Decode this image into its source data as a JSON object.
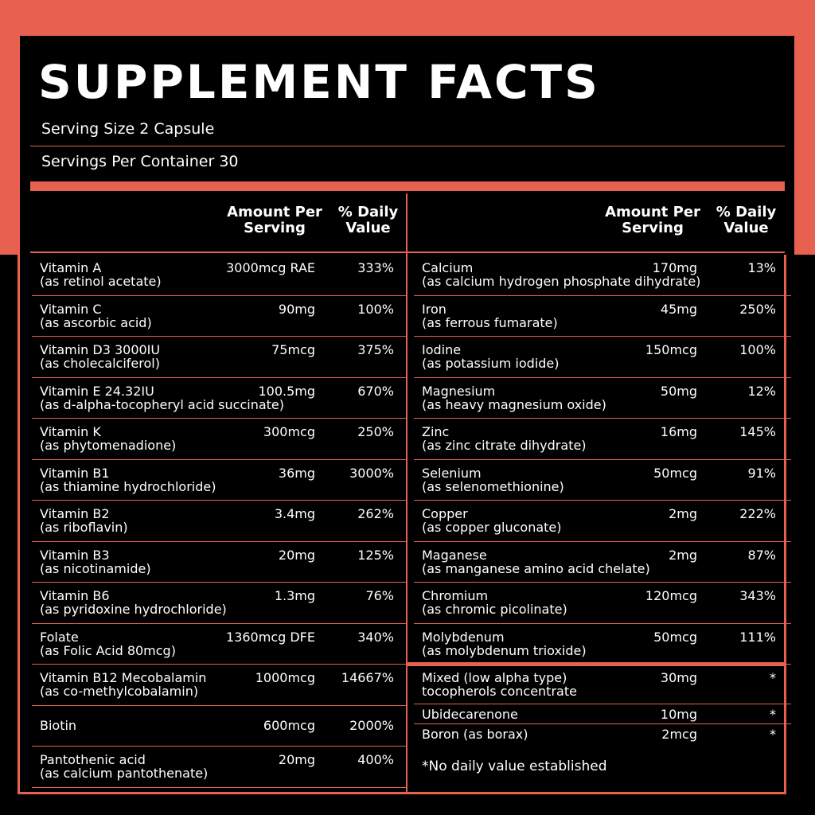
{
  "header": {
    "title": "SUPPLEMENT FACTS",
    "serving_size": "Serving Size 2 Capsule",
    "servings_per_container": "Servings Per Container 30"
  },
  "column_headers": {
    "left": {
      "amount": "Amount Per Serving",
      "daily_value": "% Daily Value"
    },
    "right": {
      "amount": "Amount Per Serving",
      "daily_value": "% Daily Value"
    }
  },
  "left_rows": [
    {
      "name": "Vitamin A",
      "source": "(as retinol acetate)",
      "amount": "3000mcg RAE",
      "daily_value": "333%"
    },
    {
      "name": "Vitamin C",
      "source": "(as ascorbic acid)",
      "amount": "90mg",
      "daily_value": "100%"
    },
    {
      "name": "Vitamin D3 3000IU",
      "source": "(as cholecalciferol)",
      "amount": "75mcg",
      "daily_value": "375%"
    },
    {
      "name": "Vitamin E 24.32IU",
      "source": "(as d-alpha-tocopheryl acid succinate)",
      "amount": "100.5mg",
      "daily_value": "670%"
    },
    {
      "name": "Vitamin K",
      "source": "(as phytomenadione)",
      "amount": "300mcg",
      "daily_value": "250%"
    },
    {
      "name": "Vitamin B1",
      "source": "(as thiamine hydrochloride)",
      "amount": "36mg",
      "daily_value": "3000%"
    },
    {
      "name": "Vitamin B2",
      "source": "(as riboflavin)",
      "amount": "3.4mg",
      "daily_value": "262%"
    },
    {
      "name": "Vitamin B3",
      "source": "(as nicotinamide)",
      "amount": "20mg",
      "daily_value": "125%"
    },
    {
      "name": "Vitamin B6",
      "source": "(as pyridoxine hydrochloride)",
      "amount": "1.3mg",
      "daily_value": "76%"
    },
    {
      "name": "Folate",
      "source": "(as Folic Acid 80mcg)",
      "amount": "1360mcg DFE",
      "daily_value": "340%"
    },
    {
      "name": "Vitamin B12 Mecobalamin",
      "source": "(as co-methylcobalamin)",
      "amount": "1000mcg",
      "daily_value": "14667%"
    },
    {
      "name": "Biotin",
      "amount": "600mcg",
      "daily_value": "2000%"
    },
    {
      "name": "Pantothenic acid",
      "source": "(as calcium pantothenate)",
      "amount": "20mg",
      "daily_value": "400%"
    }
  ],
  "right_rows": [
    {
      "name": "Calcium",
      "source": "(as calcium hydrogen phosphate dihydrate)",
      "amount": "170mg",
      "daily_value": "13%"
    },
    {
      "name": "Iron",
      "source": "(as ferrous fumarate)",
      "amount": "45mg",
      "daily_value": "250%"
    },
    {
      "name": "Iodine",
      "source": "(as potassium iodide)",
      "amount": "150mcg",
      "daily_value": "100%"
    },
    {
      "name": "Magnesium",
      "source": "(as heavy magnesium oxide)",
      "amount": "50mg",
      "daily_value": "12%"
    },
    {
      "name": "Zinc",
      "source": "(as zinc citrate dihydrate)",
      "amount": "16mg",
      "daily_value": "145%"
    },
    {
      "name": "Selenium",
      "source": "(as selenomethionine)",
      "amount": "50mcg",
      "daily_value": "91%"
    },
    {
      "name": "Copper",
      "source": "(as copper gluconate)",
      "amount": "2mg",
      "daily_value": "222%"
    },
    {
      "name": "Maganese",
      "source": "(as manganese amino acid chelate)",
      "amount": "2mg",
      "daily_value": "87%"
    },
    {
      "name": "Chromium",
      "source": "(as chromic picolinate)",
      "amount": "120mcg",
      "daily_value": "343%"
    },
    {
      "name": "Molybdenum",
      "source": "(as molybdenum trioxide)",
      "amount": "50mcg",
      "daily_value": "111%"
    }
  ],
  "other_rows": [
    {
      "name": "Mixed (low alpha type)",
      "source": "tocopherols concentrate",
      "amount": "30mg",
      "daily_value": "*"
    },
    {
      "name": "Ubidecarenone",
      "amount": "10mg",
      "daily_value": "*"
    },
    {
      "name": "Boron (as borax)",
      "amount": "2mcg",
      "daily_value": "*"
    }
  ],
  "footnote": "*No daily value established"
}
